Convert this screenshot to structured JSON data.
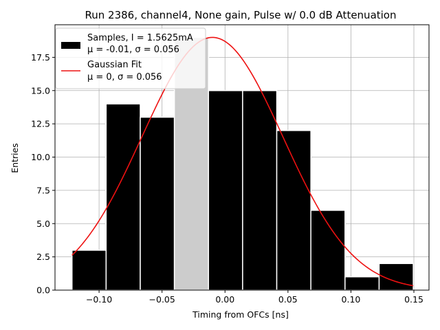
{
  "chart_data": {
    "type": "bar",
    "title": "Run 2386, channel4, None gain, Pulse w/ 0.0 dB Attenuation",
    "xlabel": "Timing from OFCs [ns]",
    "ylabel": "Entries",
    "xlim": [
      -0.135,
      0.162
    ],
    "ylim": [
      0,
      19.95
    ],
    "xticks": [
      -0.1,
      -0.05,
      0.0,
      0.05,
      0.1,
      0.15
    ],
    "xtick_labels": [
      "−0.10",
      "−0.05",
      "0.00",
      "0.05",
      "0.10",
      "0.15"
    ],
    "yticks": [
      0.0,
      2.5,
      5.0,
      7.5,
      10.0,
      12.5,
      15.0,
      17.5
    ],
    "ytick_labels": [
      "0.0",
      "2.5",
      "5.0",
      "7.5",
      "10.0",
      "12.5",
      "15.0",
      "17.5"
    ],
    "grid": true,
    "legend_position": "top-left",
    "histogram": {
      "name": "Samples, I = 1.5625mA",
      "stats_label": "μ = -0.01, σ = 0.056",
      "bin_edges": [
        -0.1215,
        -0.0944,
        -0.0673,
        -0.0402,
        -0.0131,
        0.014,
        0.0411,
        0.0682,
        0.0953,
        0.1224,
        0.1495
      ],
      "counts": [
        3,
        14,
        13,
        19,
        15,
        15,
        12,
        6,
        1,
        2
      ],
      "highlight_bin_index": 3,
      "color": "#000000",
      "highlight_color": "#cccccc",
      "edge_color": "#ffffff"
    },
    "fit": {
      "name": "Gaussian Fit",
      "stats_label": "μ = 0, σ = 0.056",
      "mu": -0.01,
      "sigma": 0.056,
      "amplitude": 19.0,
      "x_range": [
        -0.1215,
        0.1495
      ],
      "color": "#ee1111"
    }
  }
}
